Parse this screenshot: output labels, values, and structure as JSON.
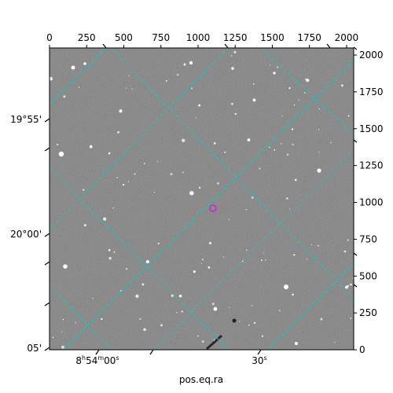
{
  "chart_data": {
    "type": "image",
    "xlabel": "pos.eq.ra",
    "ylabel": "",
    "pixel_axis_top": {
      "ticks": [
        0,
        250,
        500,
        750,
        1000,
        1250,
        1500,
        1750,
        2000
      ],
      "xlim": [
        0,
        2048
      ]
    },
    "pixel_axis_right": {
      "ticks": [
        0,
        250,
        500,
        750,
        1000,
        1250,
        1500,
        1750,
        2000
      ],
      "ylim": [
        0,
        2048
      ]
    },
    "ra_tick_labels": [
      {
        "value": "8h54m00s",
        "main": "8",
        "sup1": "h",
        "mid": "54",
        "sup2": "m",
        "mid2": "00",
        "sup3": "s"
      },
      {
        "value": "30s",
        "main": "30",
        "sup1": "s"
      }
    ],
    "dec_tick_labels": [
      "19°55'",
      "20°00'",
      "05'"
    ],
    "grid": true,
    "grid_color": "#00d0d0",
    "marker": {
      "x": 1100,
      "y": 960,
      "color": "#d020d0",
      "shape": "circle"
    },
    "background_colors": {
      "sky": "#7a7a7a",
      "frame": "#000000"
    }
  }
}
